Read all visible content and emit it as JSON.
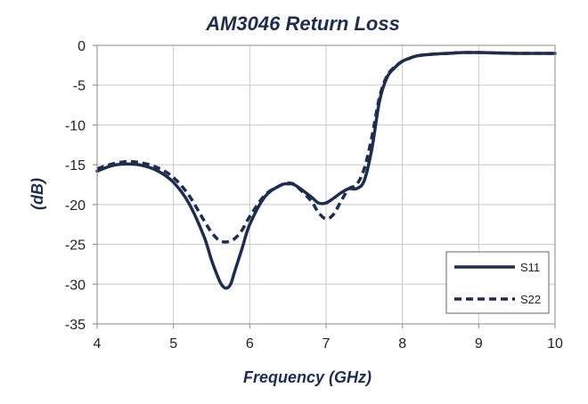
{
  "chart_data": {
    "type": "line",
    "title": "AM3046 Return Loss",
    "xlabel": "Frequency (GHz)",
    "ylabel": "(dB)",
    "xlim": [
      4,
      10
    ],
    "ylim": [
      -35,
      0
    ],
    "xticks": [
      4,
      5,
      6,
      7,
      8,
      9,
      10
    ],
    "yticks": [
      0,
      -5,
      -10,
      -15,
      -20,
      -25,
      -30,
      -35
    ],
    "grid": true,
    "legend_position": "bottom-right",
    "series": [
      {
        "name": "S11",
        "style": "solid",
        "color": "#1f2d4d",
        "x": [
          4.0,
          4.2,
          4.4,
          4.6,
          4.8,
          5.0,
          5.2,
          5.4,
          5.5,
          5.6,
          5.65,
          5.7,
          5.75,
          5.8,
          5.9,
          6.0,
          6.2,
          6.4,
          6.5,
          6.6,
          6.8,
          6.9,
          7.0,
          7.1,
          7.2,
          7.3,
          7.4,
          7.5,
          7.6,
          7.7,
          7.8,
          7.9,
          8.0,
          8.1,
          8.2,
          8.4,
          8.6,
          8.8,
          9.0,
          9.5,
          10.0
        ],
        "y": [
          -15.8,
          -15.1,
          -14.9,
          -15.1,
          -15.8,
          -17.2,
          -19.8,
          -24.0,
          -27.0,
          -29.5,
          -30.3,
          -30.5,
          -30.0,
          -28.5,
          -25.5,
          -22.5,
          -19.0,
          -17.6,
          -17.4,
          -17.6,
          -19.0,
          -19.8,
          -19.8,
          -19.2,
          -18.5,
          -18.0,
          -18.0,
          -17.0,
          -13.0,
          -7.0,
          -4.0,
          -2.8,
          -2.0,
          -1.6,
          -1.3,
          -1.1,
          -1.0,
          -0.9,
          -0.9,
          -1.0,
          -1.0
        ]
      },
      {
        "name": "S22",
        "style": "dashed",
        "color": "#1f2d4d",
        "x": [
          4.0,
          4.2,
          4.4,
          4.6,
          4.8,
          5.0,
          5.2,
          5.4,
          5.5,
          5.6,
          5.7,
          5.8,
          5.9,
          6.0,
          6.2,
          6.4,
          6.5,
          6.6,
          6.8,
          6.9,
          7.0,
          7.1,
          7.2,
          7.3,
          7.4,
          7.5,
          7.6,
          7.7,
          7.8,
          7.9,
          8.0,
          8.1,
          8.2,
          8.4,
          8.6,
          8.8,
          9.0,
          9.5,
          10.0
        ],
        "y": [
          -15.5,
          -14.9,
          -14.6,
          -14.8,
          -15.4,
          -16.6,
          -18.8,
          -22.0,
          -23.5,
          -24.5,
          -24.7,
          -24.3,
          -23.2,
          -21.5,
          -18.8,
          -17.6,
          -17.3,
          -17.6,
          -19.5,
          -21.0,
          -21.8,
          -21.2,
          -19.5,
          -18.0,
          -17.5,
          -15.5,
          -11.5,
          -6.5,
          -3.8,
          -2.7,
          -2.0,
          -1.6,
          -1.3,
          -1.1,
          -1.0,
          -0.9,
          -0.9,
          -1.0,
          -1.0
        ]
      }
    ]
  }
}
